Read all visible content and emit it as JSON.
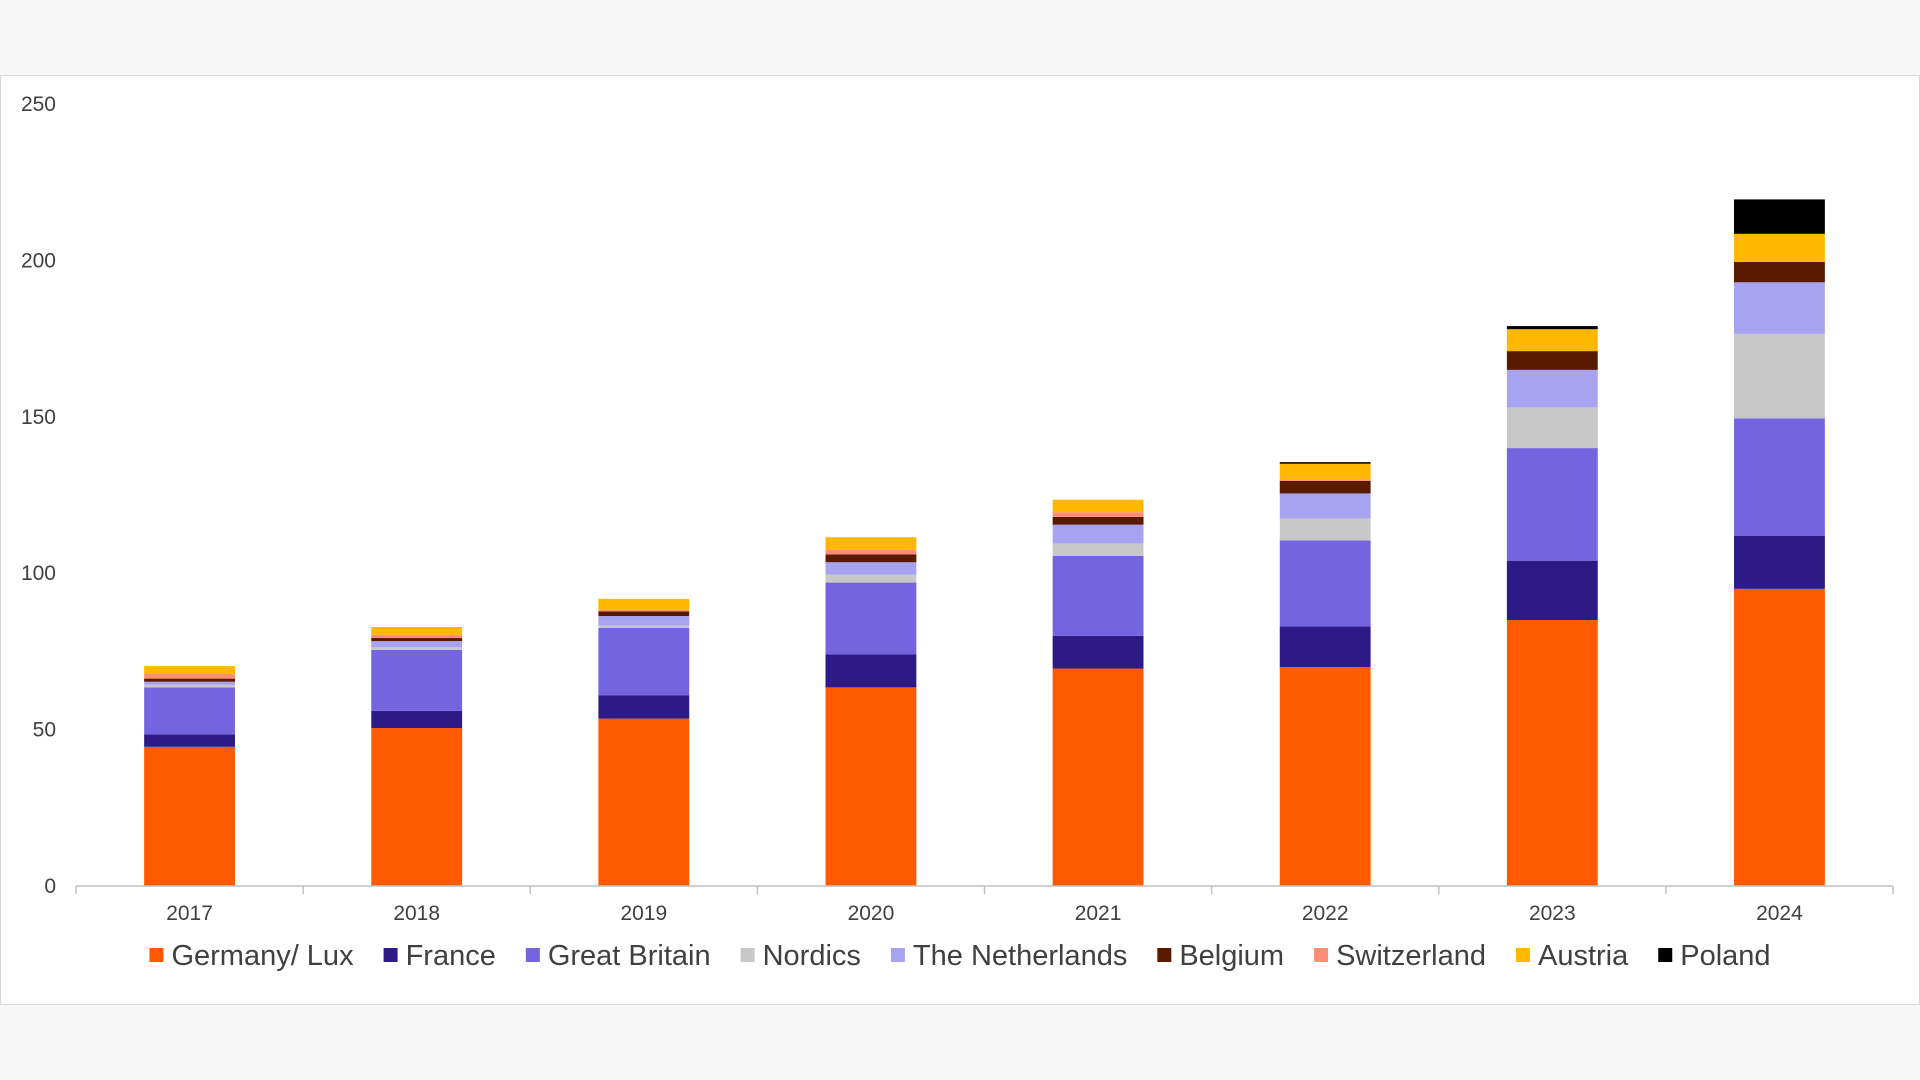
{
  "chart_data": {
    "type": "bar",
    "stacked": true,
    "categories": [
      "2017",
      "2018",
      "2019",
      "2020",
      "2021",
      "2022",
      "2023",
      "2024"
    ],
    "ylim": [
      0,
      250
    ],
    "yticks": [
      "0",
      "50",
      "100",
      "150",
      "200",
      "250"
    ],
    "title": "",
    "xlabel": "",
    "ylabel": "",
    "grid": false,
    "legend_position": "bottom",
    "series": [
      {
        "name": "Germany/ Lux",
        "color": "#ff5a00",
        "values": [
          44.5,
          50.5,
          53.5,
          63.5,
          69.5,
          70,
          85,
          95
        ]
      },
      {
        "name": "France",
        "color": "#2e1a87",
        "values": [
          4,
          5.5,
          7.5,
          10.5,
          10.5,
          13,
          19,
          17
        ]
      },
      {
        "name": "Great Britain",
        "color": "#7564e0",
        "values": [
          15,
          19.5,
          21.5,
          23,
          25.5,
          27.5,
          36,
          37.5
        ]
      },
      {
        "name": "Nordics",
        "color": "#c8c8c8",
        "values": [
          0.8,
          0.8,
          0.8,
          2.5,
          4,
          7,
          13,
          27
        ]
      },
      {
        "name": "The Netherlands",
        "color": "#a8a3f0",
        "values": [
          1,
          2,
          3,
          4,
          6,
          8,
          12,
          16.5
        ]
      },
      {
        "name": "Belgium",
        "color": "#5a1a00",
        "values": [
          1,
          1,
          1.5,
          2.5,
          2.5,
          4,
          6,
          6.5
        ]
      },
      {
        "name": "Switzerland",
        "color": "#ff8c75",
        "values": [
          1.5,
          1,
          0.5,
          1.5,
          1.5,
          0.5,
          0,
          0
        ]
      },
      {
        "name": "Austria",
        "color": "#ffb800",
        "values": [
          2.5,
          2.5,
          3.5,
          4,
          4,
          5,
          7,
          9
        ]
      },
      {
        "name": "Poland",
        "color": "#000000",
        "values": [
          0,
          0,
          0,
          0,
          0,
          0.5,
          1,
          11
        ]
      }
    ]
  }
}
